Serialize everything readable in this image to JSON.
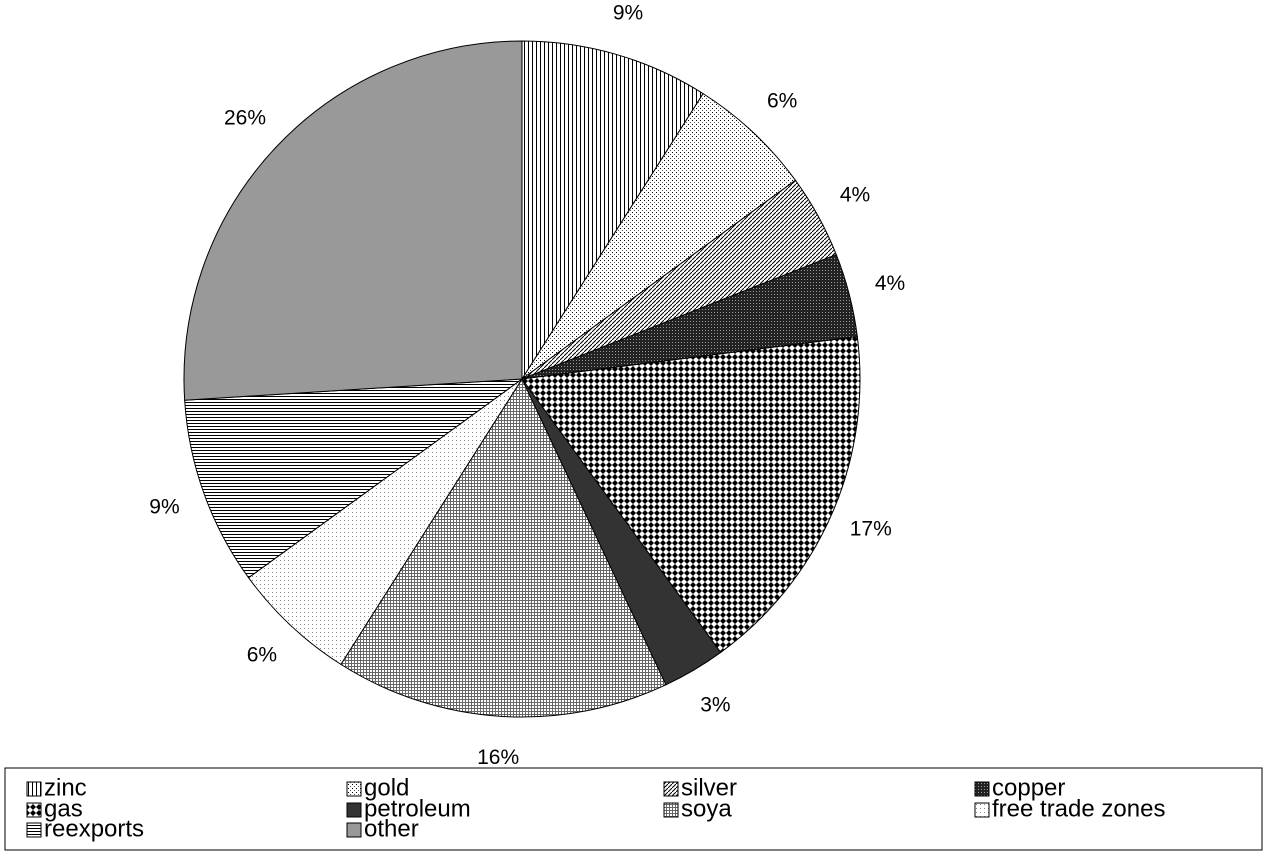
{
  "chart_data": {
    "type": "pie",
    "categories": [
      "zinc",
      "gold",
      "silver",
      "copper",
      "gas",
      "petroleum",
      "soya",
      "free trade zones",
      "reexports",
      "other"
    ],
    "values": [
      9,
      6,
      4,
      4,
      17,
      3,
      16,
      6,
      9,
      26
    ],
    "value_labels": [
      "9%",
      "6%",
      "4%",
      "4%",
      "17%",
      "3%",
      "16%",
      "6%",
      "9%",
      "26%"
    ],
    "legend": "bottom"
  }
}
